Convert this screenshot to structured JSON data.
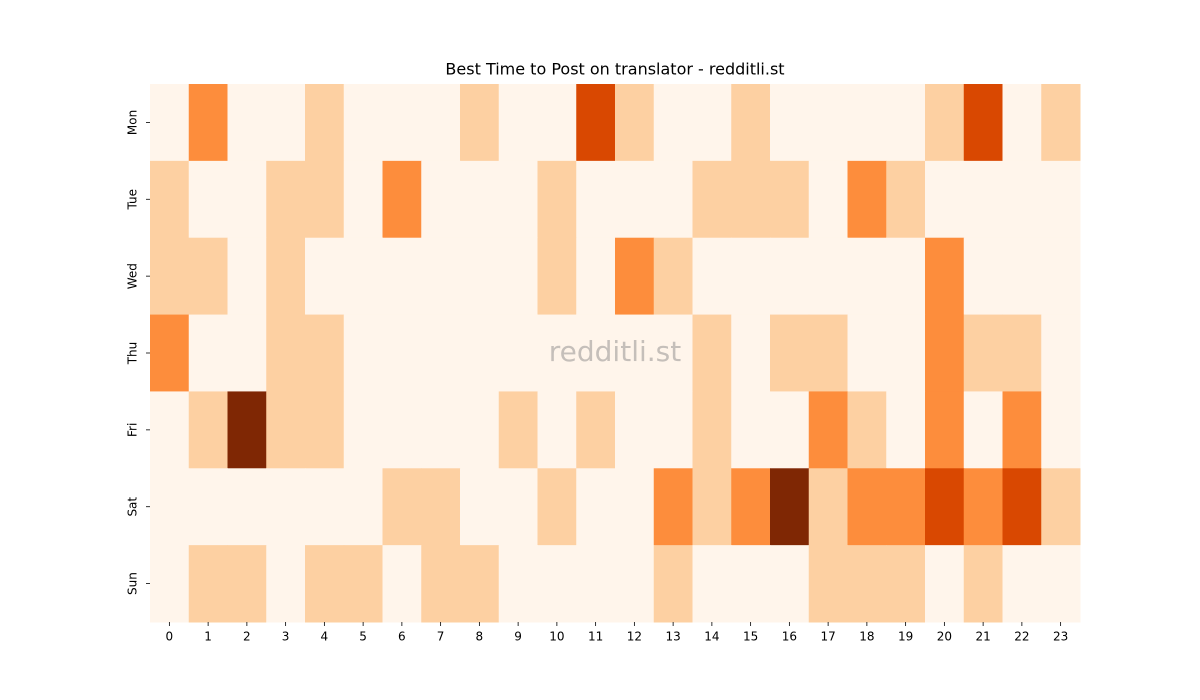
{
  "chart_data": {
    "type": "heatmap",
    "title": "Best Time to Post on translator - redditli.st",
    "watermark": "redditli.st",
    "x": [
      0,
      1,
      2,
      3,
      4,
      5,
      6,
      7,
      8,
      9,
      10,
      11,
      12,
      13,
      14,
      15,
      16,
      17,
      18,
      19,
      20,
      21,
      22,
      23
    ],
    "y": [
      "Mon",
      "Tue",
      "Wed",
      "Thu",
      "Fri",
      "Sat",
      "Sun"
    ],
    "values": [
      [
        0,
        2,
        0,
        0,
        1,
        0,
        0,
        0,
        1,
        0,
        0,
        3,
        1,
        0,
        0,
        1,
        0,
        0,
        0,
        0,
        1,
        3,
        0,
        1
      ],
      [
        1,
        0,
        0,
        1,
        1,
        0,
        2,
        0,
        0,
        0,
        1,
        0,
        0,
        0,
        1,
        1,
        1,
        0,
        2,
        1,
        0,
        0,
        0,
        0
      ],
      [
        1,
        1,
        0,
        1,
        0,
        0,
        0,
        0,
        0,
        0,
        1,
        0,
        2,
        1,
        0,
        0,
        0,
        0,
        0,
        0,
        2,
        0,
        0,
        0
      ],
      [
        2,
        0,
        0,
        1,
        1,
        0,
        0,
        0,
        0,
        0,
        0,
        0,
        0,
        0,
        1,
        0,
        1,
        1,
        0,
        0,
        2,
        1,
        1,
        0
      ],
      [
        0,
        1,
        4,
        1,
        1,
        0,
        0,
        0,
        0,
        1,
        0,
        1,
        0,
        0,
        1,
        0,
        0,
        2,
        1,
        0,
        2,
        0,
        2,
        0
      ],
      [
        0,
        0,
        0,
        0,
        0,
        0,
        1,
        1,
        0,
        0,
        1,
        0,
        0,
        2,
        1,
        2,
        4,
        1,
        2,
        2,
        3,
        2,
        3,
        1
      ],
      [
        0,
        1,
        1,
        0,
        1,
        1,
        0,
        1,
        1,
        0,
        0,
        0,
        0,
        1,
        0,
        0,
        0,
        1,
        1,
        1,
        0,
        1,
        0,
        0
      ]
    ],
    "colormap": [
      "#fff5eb",
      "#fdd0a2",
      "#fd8d3c",
      "#d94801",
      "#7f2704"
    ]
  }
}
